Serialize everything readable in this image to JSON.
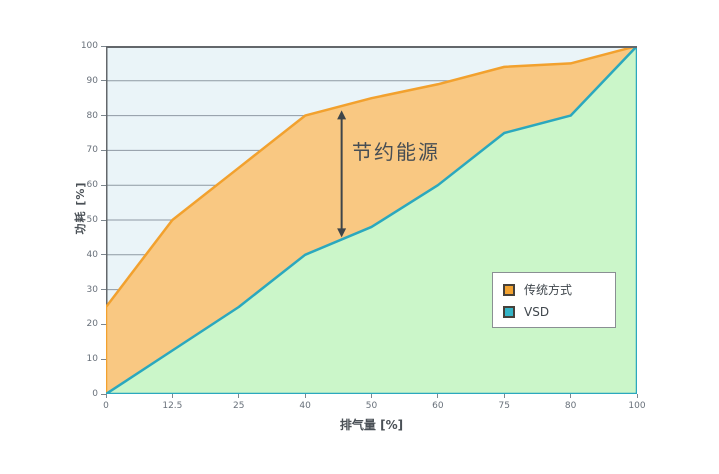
{
  "chart_data": {
    "type": "area",
    "title": "",
    "xlabel": "排气量 [%]",
    "ylabel": "功耗 [%]",
    "x_ticks": [
      "0",
      "12.5",
      "25",
      "40",
      "50",
      "60",
      "75",
      "80",
      "100"
    ],
    "y_ticks": [
      0,
      10,
      20,
      30,
      40,
      50,
      60,
      70,
      80,
      90,
      100
    ],
    "ylim": [
      0,
      100
    ],
    "grid": true,
    "legend_position": "inside-lower-right",
    "series": [
      {
        "name": "传统方式",
        "values": [
          25,
          50,
          65,
          80,
          85,
          89,
          94,
          95,
          100
        ],
        "line_color": "#F2A12E",
        "fill_color": "#F9C882"
      },
      {
        "name": "VSD",
        "values": [
          0,
          12.5,
          25,
          40,
          48,
          60,
          75,
          80,
          100
        ],
        "line_color": "#2BA8BE",
        "fill_color": "#CBF6C9"
      }
    ],
    "annotation": {
      "text": "节约能源",
      "arrow_x_index": 3.55,
      "arrow_top_value": 81.5,
      "arrow_bottom_value": 45
    }
  },
  "colors": {
    "plot_background": "#EAF4F8",
    "gridline": "#8E99A3",
    "frame": "#63676B",
    "annotation": "#3F4549",
    "axis_text": "#68707A"
  }
}
